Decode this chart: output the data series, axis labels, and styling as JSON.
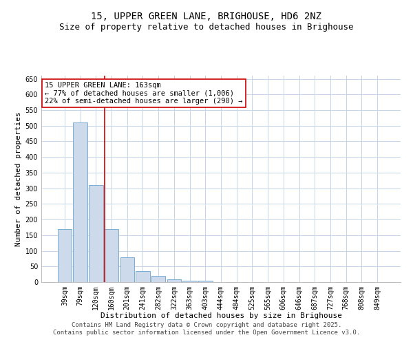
{
  "title": "15, UPPER GREEN LANE, BRIGHOUSE, HD6 2NZ",
  "subtitle": "Size of property relative to detached houses in Brighouse",
  "xlabel": "Distribution of detached houses by size in Brighouse",
  "ylabel": "Number of detached properties",
  "categories": [
    "39sqm",
    "79sqm",
    "120sqm",
    "160sqm",
    "201sqm",
    "241sqm",
    "282sqm",
    "322sqm",
    "363sqm",
    "403sqm",
    "444sqm",
    "484sqm",
    "525sqm",
    "565sqm",
    "606sqm",
    "646sqm",
    "687sqm",
    "727sqm",
    "768sqm",
    "808sqm",
    "849sqm"
  ],
  "values": [
    170,
    510,
    310,
    170,
    80,
    35,
    20,
    8,
    5,
    5,
    0,
    0,
    0,
    0,
    0,
    0,
    0,
    0,
    0,
    0,
    0
  ],
  "bar_color": "#ccdaeb",
  "bar_edge_color": "#7aadd4",
  "property_line_index": 3,
  "property_line_color": "#cc0000",
  "annotation_text": "15 UPPER GREEN LANE: 163sqm\n← 77% of detached houses are smaller (1,006)\n22% of semi-detached houses are larger (290) →",
  "annotation_box_color": "#ffffff",
  "annotation_box_edge_color": "#cc0000",
  "ylim": [
    0,
    660
  ],
  "yticks": [
    0,
    50,
    100,
    150,
    200,
    250,
    300,
    350,
    400,
    450,
    500,
    550,
    600,
    650
  ],
  "background_color": "#ffffff",
  "grid_color": "#c5d5e8",
  "footer_text": "Contains HM Land Registry data © Crown copyright and database right 2025.\nContains public sector information licensed under the Open Government Licence v3.0.",
  "title_fontsize": 10,
  "subtitle_fontsize": 9,
  "xlabel_fontsize": 8,
  "ylabel_fontsize": 8,
  "tick_fontsize": 7,
  "annotation_fontsize": 7.5,
  "footer_fontsize": 6.5
}
